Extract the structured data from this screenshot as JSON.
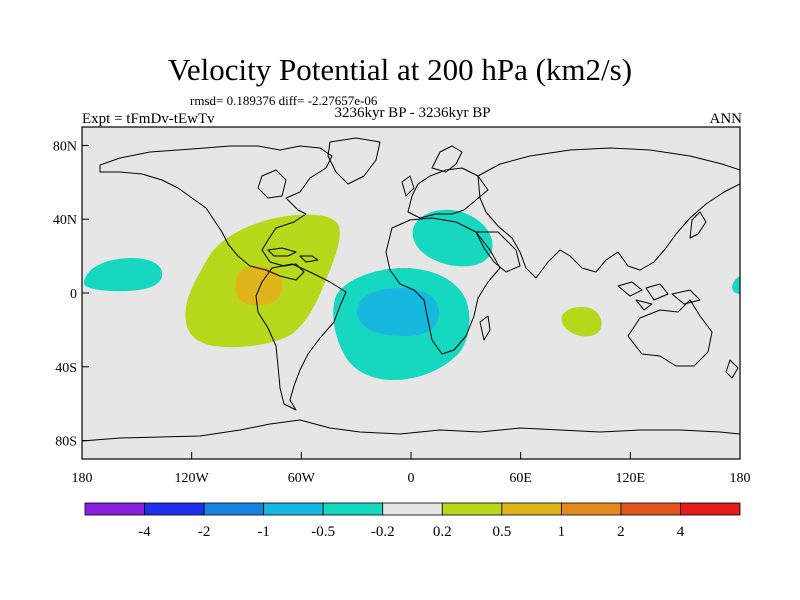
{
  "title": "Velocity Potential at 200 hPa (km2/s)",
  "stats": "rmsd= 0.189376 diff= -2.27657e-06",
  "experiment": "Expt = tFmDv-tEwTv",
  "period": "3236kyr BP - 3236kyr BP",
  "season": "ANN",
  "chart_data": {
    "type": "filled-contour-map",
    "variable": "Velocity Potential at 200 hPa",
    "units": "km2/s",
    "x_ticks": [
      "180",
      "120W",
      "60W",
      "0",
      "60E",
      "120E",
      "180"
    ],
    "y_ticks": [
      "80N",
      "40N",
      "0",
      "40S",
      "80S"
    ],
    "x_range_deg": [
      -180,
      180
    ],
    "y_range_deg": [
      -90,
      90
    ],
    "colorbar_levels": [
      "-4",
      "-2",
      "-1",
      "-0.5",
      "-0.2",
      "0.2",
      "0.5",
      "1",
      "2",
      "4"
    ],
    "colorbar_colors": [
      "#8b1fe0",
      "#1e2ff0",
      "#1583e0",
      "#16b8e0",
      "#16d8c0",
      "#e6e6e6",
      "#b7d81b",
      "#e0b51b",
      "#e28a1b",
      "#e2541b",
      "#e41c1c"
    ],
    "background_color": "#e6e6e6",
    "regions": [
      {
        "name": "central-america-positive-outer",
        "level": "0.2 to 0.5",
        "lon_center": -95,
        "lat_center": 5
      },
      {
        "name": "central-america-positive-core",
        "level": "0.5 to 1",
        "lon_center": -85,
        "lat_center": 5
      },
      {
        "name": "atlantic-negative-outer",
        "level": "-0.5 to -0.2",
        "lon_center": -5,
        "lat_center": -15
      },
      {
        "name": "atlantic-negative-core",
        "level": "-1 to -0.5",
        "lon_center": -10,
        "lat_center": -10
      },
      {
        "name": "mediterranean-negative",
        "level": "-0.5 to -0.2",
        "lon_center": 25,
        "lat_center": 40
      },
      {
        "name": "central-pacific-negative",
        "level": "-0.5 to -0.2",
        "lon_center": -155,
        "lat_center": 15
      },
      {
        "name": "indian-ocean-positive",
        "level": "0.2 to 0.5",
        "lon_center": 95,
        "lat_center": -15
      },
      {
        "name": "west-pacific-edge-negative",
        "level": "-0.5 to -0.2",
        "lon_center": 178,
        "lat_center": 5
      }
    ]
  }
}
